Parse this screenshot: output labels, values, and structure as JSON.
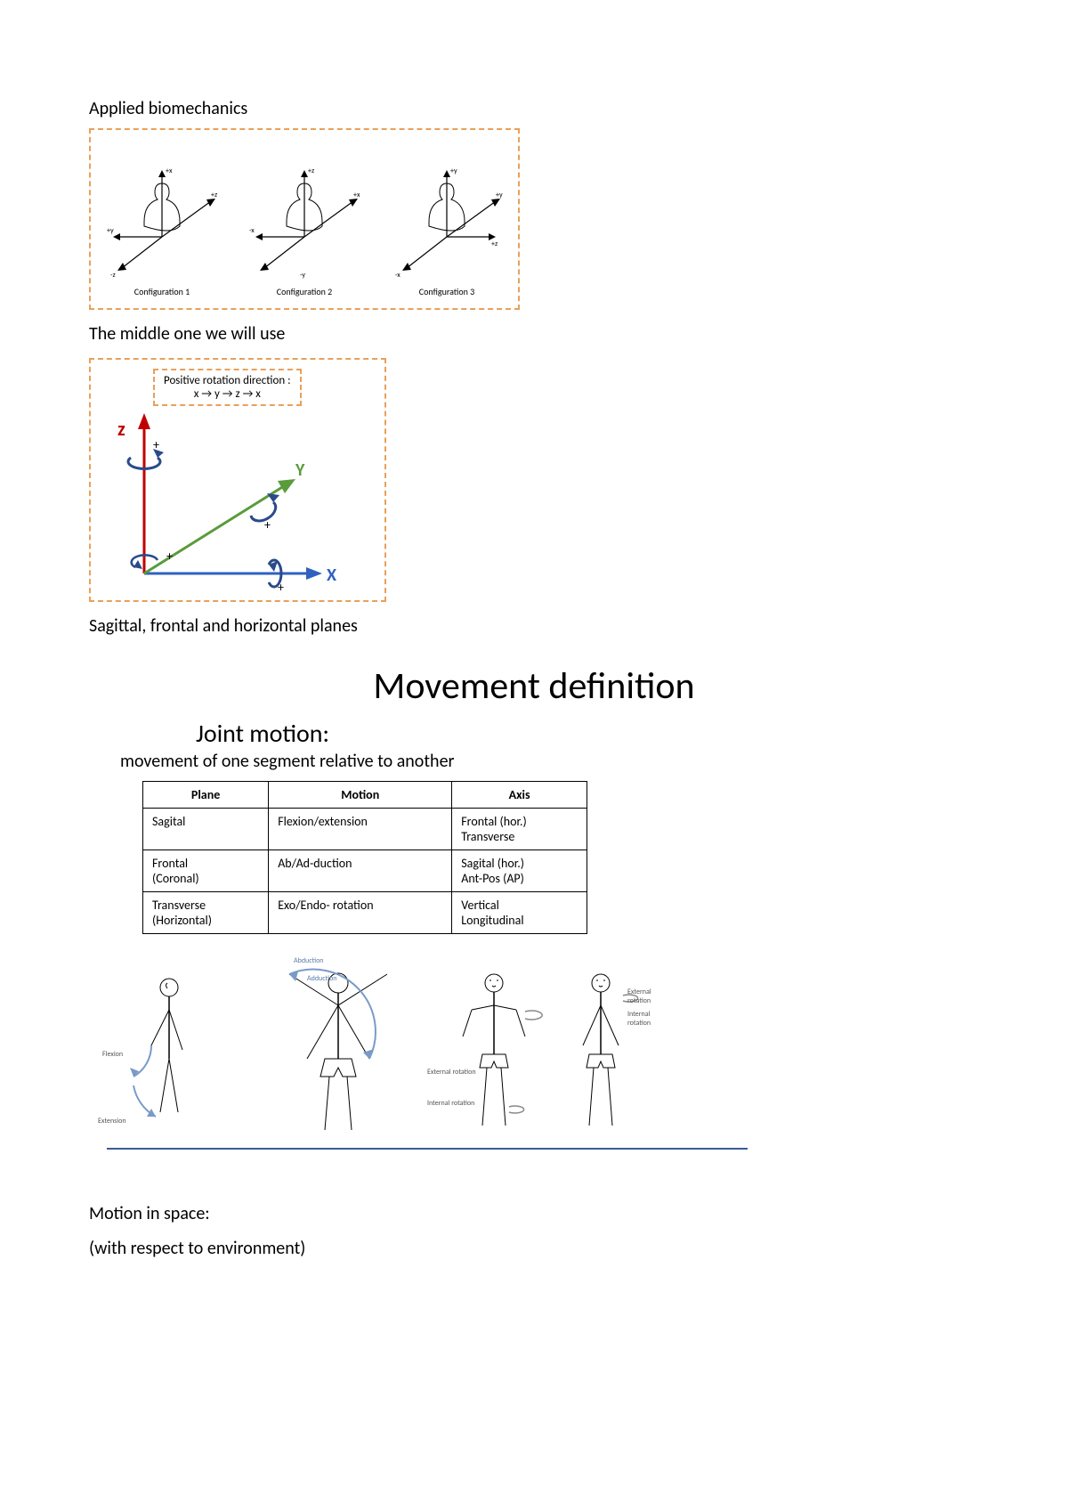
{
  "header": {
    "title": "Applied biomechanics"
  },
  "configurations": {
    "labels": [
      "Configuration 1",
      "Configuration 2",
      "Configuration 3"
    ],
    "axes": [
      {
        "up": "+x",
        "right": "+z",
        "diag": "+y",
        "down": "-z"
      },
      {
        "up": "+z",
        "right": "+x",
        "diag": "+y",
        "down": "-y"
      },
      {
        "up": "+y",
        "right": "+z",
        "diag": "+y",
        "down": "-x"
      }
    ]
  },
  "caption1": "The middle one we will use",
  "rotation": {
    "title": "Positive rotation direction :",
    "rule": "x → y → z → x",
    "z_label": "z",
    "y_label": "Y",
    "x_label": "X",
    "colors": {
      "z": "#c00000",
      "y": "#5a9b3a",
      "x": "#3060c0",
      "rot": "#2a4a8a"
    }
  },
  "caption2": "Sagittal, frontal and horizontal planes",
  "movement": {
    "title": "Movement definition",
    "subtitle": "Joint motion:",
    "desc": "movement of one segment relative to another",
    "table": {
      "columns": [
        "Plane",
        "Motion",
        "Axis"
      ],
      "rows": [
        [
          "Sagital",
          "Flexion/extension",
          "Frontal (hor.)\nTransverse"
        ],
        [
          "Frontal\n(Coronal)",
          "Ab/Ad-duction",
          "Sagital (hor.)\nAnt-Pos (AP)"
        ],
        [
          "Transverse\n(Horizontal)",
          "Exo/Endo- rotation",
          "Vertical\nLongitudinal"
        ]
      ]
    },
    "figlabels": {
      "flex": "Flexion",
      "ext": "Extension",
      "abd": "Abduction",
      "add": "Adduction",
      "extrot": "External rotation",
      "introt": "Internal rotation"
    }
  },
  "footer": {
    "l1": "Motion in space:",
    "l2": "(with respect to environment)"
  }
}
